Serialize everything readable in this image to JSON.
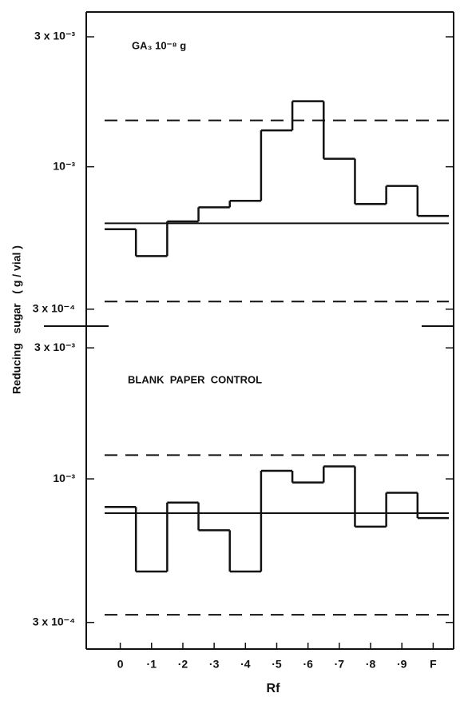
{
  "chart_data": [
    {
      "type": "step",
      "annotation": "GA₃  10⁻⁸ g",
      "ylabel": "Reducing   sugar   ( g / vial )",
      "log": true,
      "ylim": [
        0.00026,
        0.0037
      ],
      "yticks": [
        {
          "value": 0.0003,
          "label": "3 x 10⁻⁴"
        },
        {
          "value": 0.001,
          "label": "10⁻³"
        },
        {
          "value": 0.003,
          "label": "3 x 10⁻³"
        }
      ],
      "values": [
        0.00059,
        0.00047,
        0.00063,
        0.00071,
        0.00075,
        0.00136,
        0.00174,
        0.00107,
        0.00073,
        0.00085,
        0.00066
      ],
      "mean": 0.00062,
      "limits": [
        0.00148,
        0.00032
      ],
      "color": "#111111"
    },
    {
      "type": "step",
      "annotation": "BLANK  PAPER  CONTROL",
      "xlabel": "Rf",
      "categories": [
        "0",
        "·1",
        "·2",
        "·3",
        "·4",
        "·5",
        "·6",
        "·7",
        "·8",
        "·9",
        "F"
      ],
      "log": true,
      "ylim": [
        0.00024,
        0.0036
      ],
      "yticks": [
        {
          "value": 0.0003,
          "label": "3 x 10⁻⁴"
        },
        {
          "value": 0.001,
          "label": "10⁻³"
        },
        {
          "value": 0.003,
          "label": "3 x 10⁻³"
        }
      ],
      "values": [
        0.00079,
        0.00046,
        0.00082,
        0.00065,
        0.00046,
        0.00107,
        0.00097,
        0.00111,
        0.00067,
        0.00089,
        0.00072
      ],
      "mean": 0.00075,
      "limits": [
        0.00122,
        0.00032
      ],
      "color": "#111111"
    }
  ]
}
